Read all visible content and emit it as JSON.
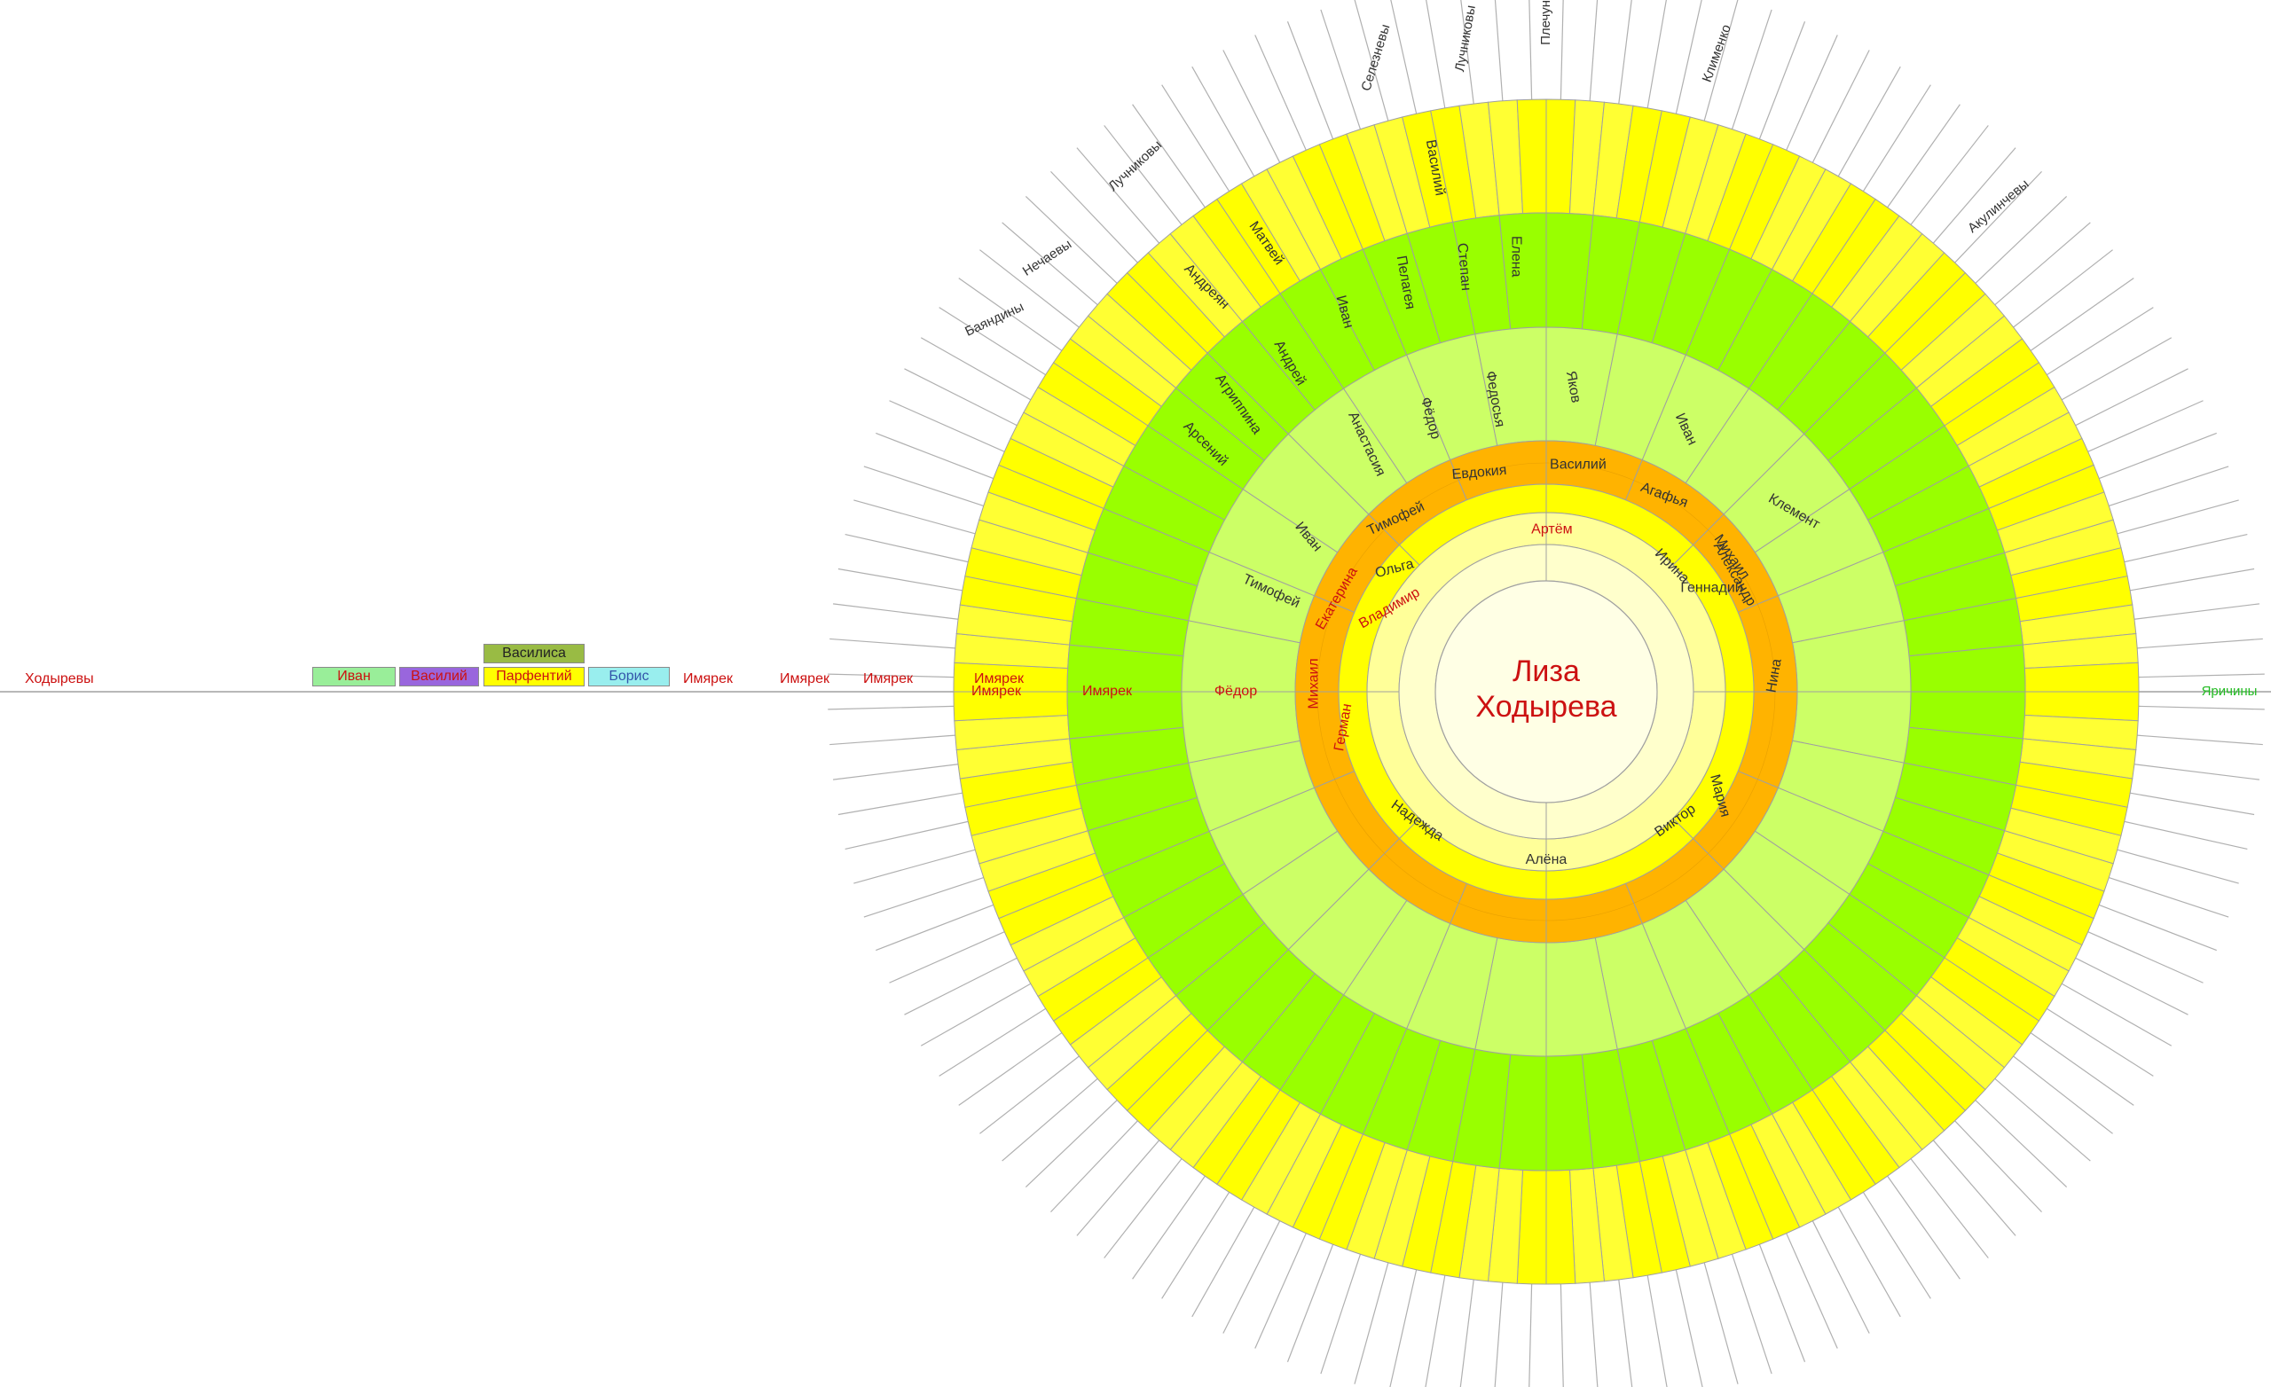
{
  "center": {
    "first": "Лиза",
    "last": "Ходырева"
  },
  "colors": {
    "ring1": "#ffffcc",
    "ring2": "#ffff99",
    "ring3": "#ffff00",
    "ring4": "#ffb300",
    "ring5": "#ccff66",
    "ring6": "#99ff00",
    "ring7": "#ffff00",
    "ring8": "#ffff33",
    "center": "#ffffe5",
    "line": "#a0a0a0",
    "red": "#cc1111",
    "dark": "#333333",
    "green": "#22bb22",
    "box_ivan": "#99ee99",
    "box_vasiliy": "#9966dd",
    "box_parfentiy": "#ffff00",
    "box_vasilisa": "#99bb44",
    "box_boris": "#99eeee"
  },
  "names": {
    "ring1": [
      {
        "text": "Артём",
        "color": "red"
      },
      {
        "text": "Алёна",
        "color": "dark"
      }
    ],
    "ring2": [
      {
        "text": "Ирина",
        "color": "dark"
      },
      {
        "text": "Владимир",
        "color": "red"
      },
      {
        "text": "Надежда",
        "color": "dark"
      },
      {
        "text": "Виктор",
        "color": "dark"
      }
    ],
    "ring3": [
      {
        "text": "Геннадий",
        "color": "dark"
      },
      {
        "text": "Мария",
        "color": "dark"
      },
      {
        "text": "Ольга",
        "color": "dark"
      },
      {
        "text": "Герман",
        "color": "red"
      }
    ],
    "ring4": [
      {
        "text": "Василий",
        "color": "dark"
      },
      {
        "text": "Агафья",
        "color": "dark"
      },
      {
        "text": "Михаил",
        "color": "dark"
      },
      {
        "text": "Александр",
        "color": "dark"
      },
      {
        "text": "Нина",
        "color": "dark"
      },
      {
        "text": "Евдокия",
        "color": "dark"
      },
      {
        "text": "Тимофей",
        "color": "dark"
      },
      {
        "text": "Екатерина",
        "color": "red"
      },
      {
        "text": "Михаил",
        "color": "red"
      }
    ],
    "ring5": [
      {
        "text": "Яков",
        "color": "dark"
      },
      {
        "text": "Иван",
        "color": "dark"
      },
      {
        "text": "Клемент",
        "color": "dark"
      },
      {
        "text": "Федосья",
        "color": "dark"
      },
      {
        "text": "Фёдор",
        "color": "dark"
      },
      {
        "text": "Анастасия",
        "color": "dark"
      },
      {
        "text": "Иван",
        "color": "dark"
      },
      {
        "text": "Тимофей",
        "color": "dark"
      },
      {
        "text": "Фёдор",
        "color": "red"
      }
    ],
    "ring6": [
      {
        "text": "Елена",
        "color": "dark"
      },
      {
        "text": "Степан",
        "color": "dark"
      },
      {
        "text": "Пелагея",
        "color": "dark"
      },
      {
        "text": "Иван",
        "color": "dark"
      },
      {
        "text": "Андрей",
        "color": "dark"
      },
      {
        "text": "Агриппина",
        "color": "dark"
      },
      {
        "text": "Арсений",
        "color": "dark"
      },
      {
        "text": "Имярек",
        "color": "red"
      }
    ],
    "ring7": [
      {
        "text": "Василий",
        "color": "dark"
      },
      {
        "text": "Матвей",
        "color": "dark"
      },
      {
        "text": "Андреян",
        "color": "dark"
      },
      {
        "text": "Имярек",
        "color": "red"
      }
    ],
    "surnames": [
      {
        "text": "Плечуны",
        "color": "dark"
      },
      {
        "text": "Лучниковы",
        "color": "dark"
      },
      {
        "text": "Селезневы",
        "color": "dark"
      },
      {
        "text": "Клименко",
        "color": "dark"
      },
      {
        "text": "Акулинчевы",
        "color": "dark"
      },
      {
        "text": "Лучниковы",
        "color": "dark"
      },
      {
        "text": "Нечаевы",
        "color": "dark"
      },
      {
        "text": "Баяндины",
        "color": "dark"
      },
      {
        "text": "Яричины",
        "color": "green"
      }
    ]
  },
  "left_line": {
    "surname": "Ходыревы",
    "boxes": {
      "ivan": "Иван",
      "vasiliy": "Василий",
      "parfentiy": "Парфентий",
      "vasilisa": "Василиса",
      "boris": "Борис"
    },
    "imyarek": [
      "Имярек",
      "Имярек",
      "Имярек",
      "Имярек"
    ]
  }
}
